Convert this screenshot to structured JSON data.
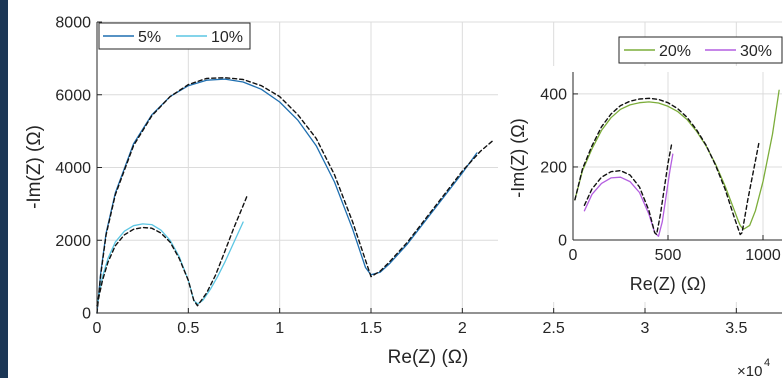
{
  "colors": {
    "s5": "#1f6fb0",
    "s10": "#5cc6e3",
    "s20": "#7cad3a",
    "s30": "#b45fe0",
    "fit": "#111111",
    "grid": "#dcdcdc",
    "axis": "#262626",
    "edge": "#1c3756"
  },
  "chart_data": [
    {
      "type": "line",
      "xlabel": "Re(Z) (Ω)",
      "ylabel": "-Im(Z) (Ω)",
      "x_exponent_label": "×10",
      "x_exponent_power": "4",
      "x_multiplier": 10000,
      "xlim": [
        0,
        3.75
      ],
      "ylim": [
        0,
        8000
      ],
      "xticks": [
        0,
        0.5,
        1,
        1.5,
        2,
        2.5,
        3,
        3.5
      ],
      "xtick_labels": [
        "0",
        "0.5",
        "1",
        "1.5",
        "2",
        "2.5",
        "3",
        "3.5"
      ],
      "yticks": [
        0,
        2000,
        4000,
        6000,
        8000
      ],
      "ytick_labels": [
        "0",
        "2000",
        "4000",
        "6000",
        "8000"
      ],
      "grid": true,
      "legend": {
        "placement": "top-left",
        "entries": [
          "5%",
          "10%"
        ]
      },
      "series": [
        {
          "name": "5%",
          "color_key": "s5",
          "style": "solid",
          "x": [
            0,
            0.02,
            0.05,
            0.1,
            0.2,
            0.3,
            0.4,
            0.5,
            0.6,
            0.7,
            0.8,
            0.9,
            1.0,
            1.1,
            1.2,
            1.3,
            1.4,
            1.47,
            1.5,
            1.55,
            1.6,
            1.7,
            1.8,
            1.9,
            2.0,
            2.08
          ],
          "y": [
            0,
            1100,
            2200,
            3300,
            4650,
            5450,
            5950,
            6250,
            6400,
            6430,
            6350,
            6150,
            5800,
            5300,
            4600,
            3600,
            2300,
            1250,
            1050,
            1120,
            1350,
            1900,
            2550,
            3200,
            3850,
            4400
          ]
        },
        {
          "name": "10%",
          "color_key": "s10",
          "style": "solid",
          "x": [
            0,
            0.03,
            0.06,
            0.1,
            0.15,
            0.2,
            0.25,
            0.3,
            0.35,
            0.4,
            0.45,
            0.5,
            0.53,
            0.55,
            0.58,
            0.62,
            0.66,
            0.7,
            0.75,
            0.8
          ],
          "y": [
            200,
            1000,
            1500,
            1950,
            2250,
            2400,
            2450,
            2430,
            2280,
            2000,
            1550,
            900,
            350,
            250,
            350,
            650,
            1000,
            1400,
            1950,
            2500
          ]
        },
        {
          "name": "fit",
          "color_key": "fit",
          "style": "dashed",
          "x": [
            0,
            0.02,
            0.05,
            0.1,
            0.2,
            0.3,
            0.4,
            0.5,
            0.6,
            0.7,
            0.8,
            0.9,
            1.0,
            1.1,
            1.2,
            1.3,
            1.4,
            1.5,
            1.55,
            1.6,
            1.7,
            1.8,
            1.9,
            2.0,
            2.1,
            2.17
          ],
          "y": [
            0,
            1050,
            2150,
            3250,
            4600,
            5420,
            5950,
            6280,
            6450,
            6470,
            6420,
            6250,
            5950,
            5450,
            4800,
            3800,
            2500,
            1000,
            1150,
            1400,
            1950,
            2600,
            3250,
            3900,
            4450,
            4750
          ]
        },
        {
          "name": "fit",
          "color_key": "fit",
          "style": "dashed",
          "x": [
            0,
            0.03,
            0.06,
            0.1,
            0.15,
            0.2,
            0.25,
            0.3,
            0.35,
            0.4,
            0.45,
            0.5,
            0.53,
            0.55,
            0.6,
            0.65,
            0.7,
            0.75,
            0.8,
            0.82
          ],
          "y": [
            200,
            900,
            1400,
            1850,
            2150,
            2300,
            2350,
            2330,
            2200,
            1950,
            1500,
            900,
            350,
            200,
            550,
            1050,
            1700,
            2350,
            2950,
            3200
          ]
        }
      ]
    },
    {
      "type": "line",
      "xlabel": "Re(Z) (Ω)",
      "ylabel": "-Im(Z) (Ω)",
      "xlim": [
        0,
        1100
      ],
      "ylim": [
        0,
        460
      ],
      "xticks": [
        0,
        500,
        1000
      ],
      "xtick_labels": [
        "0",
        "500",
        "1000"
      ],
      "yticks": [
        0,
        200,
        400
      ],
      "ytick_labels": [
        "0",
        "200",
        "400"
      ],
      "grid": true,
      "legend": {
        "placement": "top",
        "entries": [
          "20%",
          "30%"
        ]
      },
      "series": [
        {
          "name": "20%",
          "color_key": "s20",
          "style": "solid",
          "x": [
            10,
            50,
            100,
            150,
            200,
            250,
            300,
            350,
            400,
            450,
            500,
            550,
            600,
            650,
            700,
            750,
            800,
            850,
            870,
            880,
            890,
            900,
            930,
            960,
            1000,
            1050,
            1085
          ],
          "y": [
            110,
            190,
            250,
            300,
            335,
            358,
            370,
            376,
            378,
            375,
            366,
            352,
            330,
            298,
            258,
            208,
            148,
            80,
            52,
            40,
            33,
            30,
            40,
            80,
            160,
            290,
            410
          ]
        },
        {
          "name": "30%",
          "color_key": "s30",
          "style": "solid",
          "x": [
            60,
            100,
            150,
            200,
            250,
            300,
            350,
            400,
            430,
            450,
            470,
            490,
            510,
            525
          ],
          "y": [
            80,
            125,
            155,
            170,
            172,
            160,
            130,
            70,
            20,
            10,
            50,
            120,
            190,
            235
          ]
        },
        {
          "name": "fit",
          "color_key": "fit",
          "style": "dashed",
          "x": [
            10,
            50,
            100,
            150,
            200,
            250,
            300,
            350,
            400,
            450,
            500,
            550,
            600,
            650,
            700,
            750,
            800,
            850,
            880,
            890,
            900,
            920,
            950,
            980
          ],
          "y": [
            110,
            195,
            258,
            310,
            345,
            368,
            380,
            386,
            388,
            385,
            376,
            360,
            336,
            302,
            260,
            205,
            140,
            60,
            15,
            20,
            50,
            110,
            190,
            270
          ]
        },
        {
          "name": "fit",
          "color_key": "fit",
          "style": "dashed",
          "x": [
            60,
            100,
            150,
            200,
            250,
            300,
            350,
            400,
            430,
            440,
            460,
            480,
            500,
            520
          ],
          "y": [
            95,
            140,
            172,
            187,
            190,
            178,
            145,
            80,
            20,
            15,
            70,
            140,
            210,
            265
          ]
        }
      ]
    }
  ]
}
